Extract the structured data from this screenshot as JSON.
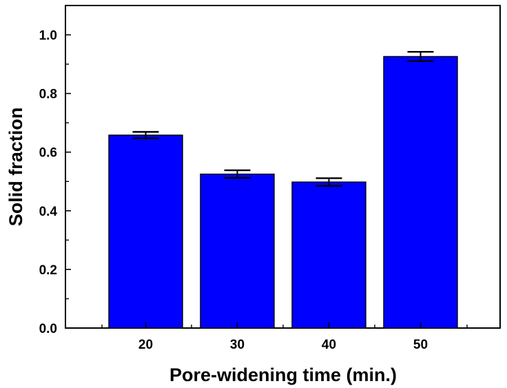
{
  "chart_data": {
    "type": "bar",
    "title": "",
    "xlabel": "Pore-widening time (min.)",
    "ylabel": "Solid fraction",
    "categories": [
      "20",
      "30",
      "40",
      "50"
    ],
    "series": [
      {
        "values": [
          0.658,
          0.525,
          0.498,
          0.926
        ],
        "errors": [
          0.011,
          0.013,
          0.013,
          0.016
        ],
        "color": "#0000ff"
      }
    ],
    "ylim": [
      0,
      1.1
    ],
    "yticks": [
      0.0,
      0.2,
      0.4,
      0.6,
      0.8,
      1.0
    ],
    "ytick_labels": [
      "0.0",
      "0.2",
      "0.4",
      "0.6",
      "0.8",
      "1.0"
    ],
    "grid": false,
    "legend": "none"
  }
}
